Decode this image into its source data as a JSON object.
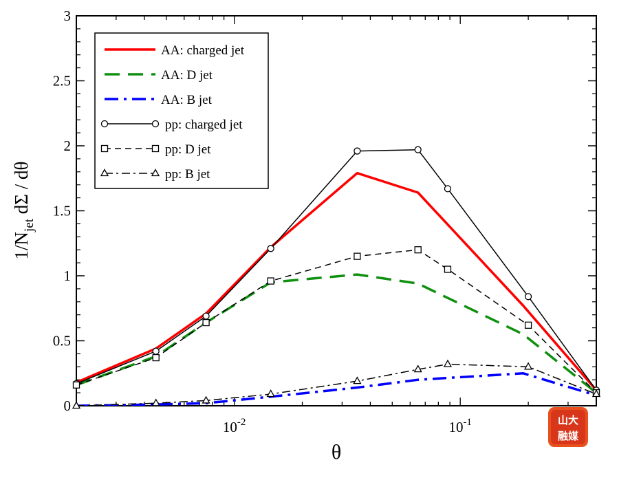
{
  "chart_data": {
    "type": "line",
    "xlabel": "θ",
    "ylabel": "1/N_jet dΣ / dθ",
    "ylabel_parts": {
      "main": "1/N",
      "sub": "jet",
      "rest": " dΣ / dθ"
    },
    "xscale": "log",
    "xlim": [
      0.002,
      0.4
    ],
    "ylim": [
      0,
      3
    ],
    "y_ticks": [
      {
        "value": 0,
        "label": "0"
      },
      {
        "value": 0.5,
        "label": "0.5"
      },
      {
        "value": 1,
        "label": "1"
      },
      {
        "value": 1.5,
        "label": "1.5"
      },
      {
        "value": 2,
        "label": "2"
      },
      {
        "value": 2.5,
        "label": "2.5"
      },
      {
        "value": 3,
        "label": "3"
      }
    ],
    "x_ticks": [
      {
        "value": 0.01,
        "base": "10",
        "exp": "-2"
      },
      {
        "value": 0.1,
        "base": "10",
        "exp": "-1"
      }
    ],
    "grid": false,
    "legend_position": "top-left",
    "series": [
      {
        "name": "AA:  charged jet",
        "color": "#ff0000",
        "style": "solid-thick",
        "marker": "none",
        "x": [
          0.002,
          0.0045,
          0.0075,
          0.0145,
          0.035,
          0.065,
          0.19,
          0.4
        ],
        "y": [
          0.18,
          0.44,
          0.71,
          1.22,
          1.79,
          1.64,
          0.77,
          0.12
        ]
      },
      {
        "name": "AA:  D jet",
        "color": "#109010",
        "style": "dashed-thick",
        "marker": "none",
        "x": [
          0.002,
          0.0045,
          0.0075,
          0.0145,
          0.035,
          0.065,
          0.19,
          0.4
        ],
        "y": [
          0.16,
          0.38,
          0.64,
          0.95,
          1.01,
          0.94,
          0.55,
          0.1
        ]
      },
      {
        "name": "AA:  B jet",
        "color": "#0000ff",
        "style": "dashdot-thick",
        "marker": "none",
        "x": [
          0.002,
          0.0045,
          0.0075,
          0.0145,
          0.035,
          0.065,
          0.19,
          0.4
        ],
        "y": [
          0.0,
          0.01,
          0.02,
          0.07,
          0.14,
          0.2,
          0.25,
          0.08
        ]
      },
      {
        "name": "pp:  charged jet",
        "color": "#000000",
        "style": "solid",
        "marker": "circle",
        "x": [
          0.002,
          0.0045,
          0.0075,
          0.0145,
          0.035,
          0.065,
          0.088,
          0.2,
          0.4
        ],
        "y": [
          0.17,
          0.42,
          0.69,
          1.21,
          1.96,
          1.97,
          1.67,
          0.84,
          0.12
        ]
      },
      {
        "name": "pp:  D jet",
        "color": "#000000",
        "style": "dashed",
        "marker": "square",
        "x": [
          0.002,
          0.0045,
          0.0075,
          0.0145,
          0.035,
          0.065,
          0.088,
          0.2,
          0.4
        ],
        "y": [
          0.16,
          0.37,
          0.64,
          0.96,
          1.15,
          1.2,
          1.05,
          0.62,
          0.1
        ]
      },
      {
        "name": "pp:  B jet",
        "color": "#000000",
        "style": "dashdot",
        "marker": "triangle",
        "x": [
          0.002,
          0.0045,
          0.0075,
          0.0145,
          0.035,
          0.065,
          0.088,
          0.2,
          0.4
        ],
        "y": [
          0.0,
          0.02,
          0.04,
          0.09,
          0.19,
          0.28,
          0.32,
          0.3,
          0.09
        ]
      }
    ]
  },
  "watermark": {
    "line1": "山大",
    "line2": "融媒"
  }
}
